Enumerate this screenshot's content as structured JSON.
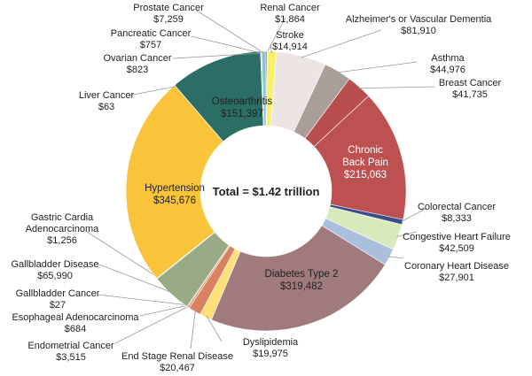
{
  "chart_data": {
    "type": "pie",
    "donut": true,
    "center_label": "Total = $1.42 trillion",
    "slices": [
      {
        "label": "Renal Cancer",
        "value_text": "$1,864",
        "value": 1864,
        "color": "#2d3f86"
      },
      {
        "label": "Stroke",
        "value_text": "$14,914",
        "value": 14914,
        "color": "#f9ef6a"
      },
      {
        "label": "Alzheimer's or Vascular Dementia",
        "value_text": "$81,910",
        "value": 81910,
        "color": "#ede5e3"
      },
      {
        "label": "Asthma",
        "value_text": "$44,976",
        "value": 44976,
        "color": "#a99f98"
      },
      {
        "label": "Breast Cancer",
        "value_text": "$41,735",
        "value": 41735,
        "color": "#b84e4e"
      },
      {
        "label": "Chronic Back Pain",
        "value_text": "$215,063",
        "value": 215063,
        "color": "#bd5050"
      },
      {
        "label": "Colorectal Cancer",
        "value_text": "$8,333",
        "value": 8333,
        "color": "#3a4f8a"
      },
      {
        "label": "Congestive Heart Failure",
        "value_text": "$42,509",
        "value": 42509,
        "color": "#d6eabb"
      },
      {
        "label": "Coronary Heart Disease",
        "value_text": "$27,901",
        "value": 27901,
        "color": "#a9bfdc"
      },
      {
        "label": "Diabetes Type 2",
        "value_text": "$319,482",
        "value": 319482,
        "color": "#a07a7c"
      },
      {
        "label": "Dyslipidemia",
        "value_text": "$19,975",
        "value": 19975,
        "color": "#fde07a"
      },
      {
        "label": "End Stage Renal Disease",
        "value_text": "$20,467",
        "value": 20467,
        "color": "#d9825f"
      },
      {
        "label": "Endometrial Cancer",
        "value_text": "$3,515",
        "value": 3515,
        "color": "#e0a080"
      },
      {
        "label": "Esophageal Adenocarcinoma",
        "value_text": "$684",
        "value": 684,
        "color": "#1f3050"
      },
      {
        "label": "Gallbladder Cancer",
        "value_text": "$27",
        "value": 27,
        "color": "#555555"
      },
      {
        "label": "Gallbladder Disease",
        "value_text": "$65,990",
        "value": 65990,
        "color": "#98ab84"
      },
      {
        "label": "Gastric Cardia Adenocarcinoma",
        "value_text": "$1,256",
        "value": 1256,
        "color": "#6a7a60"
      },
      {
        "label": "Hypertension",
        "value_text": "$345,676",
        "value": 345676,
        "color": "#f9c33a"
      },
      {
        "label": "Liver Cancer",
        "value_text": "$63",
        "value": 63,
        "color": "#f0b030"
      },
      {
        "label": "Osteoarthritis",
        "value_text": "$151,397",
        "value": 151397,
        "color": "#2a6e66"
      },
      {
        "label": "Ovarian Cancer",
        "value_text": "$823",
        "value": 823,
        "color": "#a7d3d6"
      },
      {
        "label": "Pancreatic Cancer",
        "value_text": "$757",
        "value": 757,
        "color": "#b7a070"
      },
      {
        "label": "Prostate Cancer",
        "value_text": "$7,259",
        "value": 7259,
        "color": "#8cc7cc"
      }
    ]
  }
}
